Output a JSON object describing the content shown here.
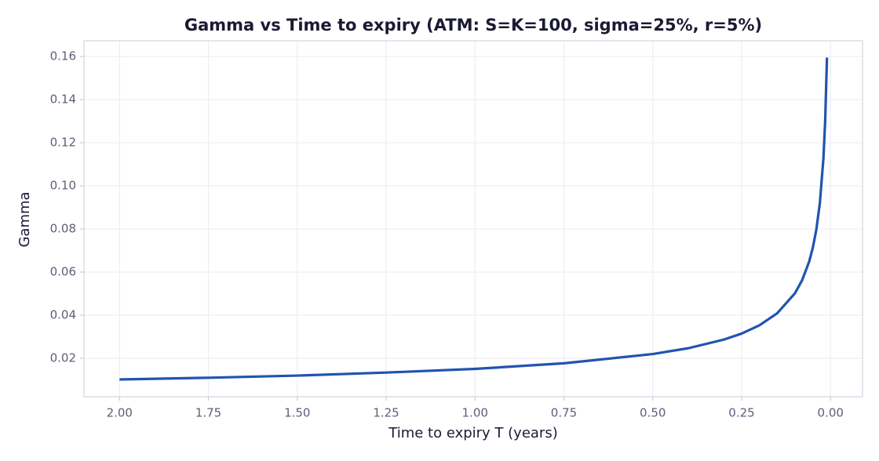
{
  "chart_data": {
    "type": "line",
    "title": "Gamma vs Time to expiry  (ATM: S=K=100, sigma=25%, r=5%)",
    "x_label": "Time to expiry T (years)",
    "y_label": "Gamma",
    "x": [
      2.0,
      1.75,
      1.5,
      1.25,
      1.0,
      0.75,
      0.5,
      0.4,
      0.3,
      0.25,
      0.2,
      0.15,
      0.1,
      0.08,
      0.06,
      0.05,
      0.04,
      0.03,
      0.02,
      0.015,
      0.01
    ],
    "series": [
      {
        "name": "Gamma",
        "color": "#2154b0",
        "values": [
          0.0102,
          0.011,
          0.012,
          0.0134,
          0.0151,
          0.0177,
          0.022,
          0.0247,
          0.0287,
          0.0315,
          0.0353,
          0.0409,
          0.0502,
          0.0562,
          0.0649,
          0.0712,
          0.0796,
          0.092,
          0.1127,
          0.1302,
          0.1595
        ]
      }
    ],
    "xlim": [
      2.1,
      -0.09
    ],
    "ylim": [
      0.0022,
      0.1673
    ],
    "xticks": [
      {
        "value": 2,
        "label": "2.00"
      },
      1.75,
      {
        "value": 1.5,
        "label": "1.50"
      },
      1.25,
      {
        "value": 1,
        "label": "1.00"
      },
      0.75,
      {
        "value": 0.5,
        "label": "0.50"
      },
      0.25,
      {
        "value": 0,
        "label": "0.00"
      }
    ],
    "yticks": [
      0.02,
      0.04,
      0.06,
      0.08,
      {
        "value": 0.1,
        "label": "0.10"
      },
      0.12,
      0.14,
      0.16
    ],
    "grid": true
  }
}
